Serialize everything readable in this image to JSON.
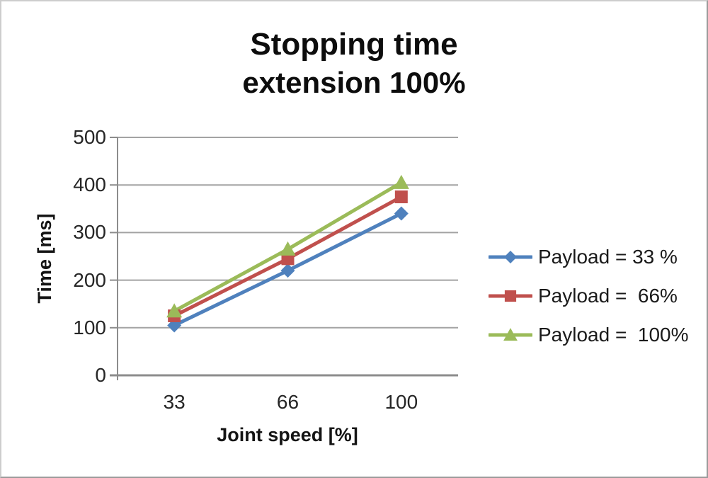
{
  "chart_data": {
    "type": "line",
    "title": "Stopping time",
    "subtitle": "extension 100%",
    "xlabel": "Joint speed [%]",
    "ylabel": "Time [ms]",
    "categories": [
      33,
      66,
      100
    ],
    "x_tick_labels": [
      "33",
      "66",
      "100"
    ],
    "y_ticks": [
      0,
      100,
      200,
      300,
      400,
      500
    ],
    "ylim": [
      0,
      500
    ],
    "grid": "horizontal",
    "legend_position": "right",
    "series": [
      {
        "name": "Payload = 33 %",
        "marker": "diamond",
        "color": "#4F81BD",
        "values": [
          105,
          220,
          340
        ]
      },
      {
        "name": "Payload =  66%",
        "marker": "square",
        "color": "#C0504D",
        "values": [
          125,
          245,
          375
        ]
      },
      {
        "name": "Payload =  100%",
        "marker": "triangle",
        "color": "#9BBB59",
        "values": [
          135,
          265,
          405
        ]
      }
    ],
    "colors": {
      "gridline": "#A3A3A3",
      "axis": "#8C8C8C",
      "text": "#1F1F1F",
      "border": "#9B9B9B"
    }
  }
}
